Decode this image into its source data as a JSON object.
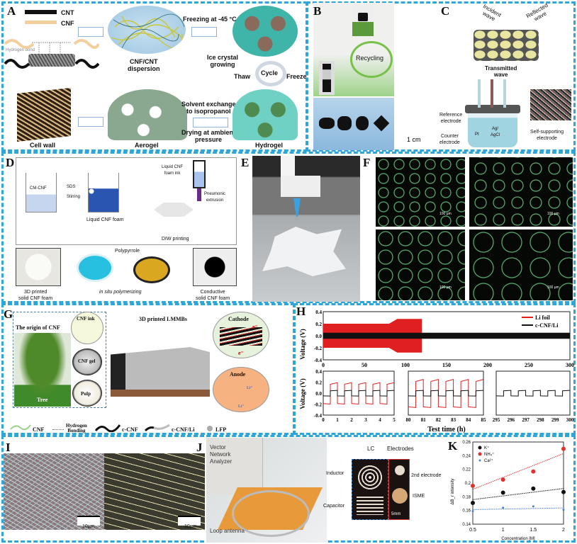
{
  "panels": {
    "A": {
      "label": "A",
      "legend_cnt": "CNT",
      "legend_cnf": "CNF",
      "hbond": "Hydrogen bond",
      "dispersion": "CNF/CNT\ndispersion",
      "freezing": "Freezing at -45 °C",
      "ice": "Ice crystal\ngrowing",
      "thaw": "Thaw",
      "cycle": "Cycle",
      "freeze": "Freeze",
      "solvent": "Solvent exchange\nto isopropanol",
      "drying": "Drying at ambient\npressure",
      "cell_wall": "Cell wall",
      "aerogel": "Aerogel",
      "hydrogel": "Hydrogel"
    },
    "B": {
      "label": "B",
      "recycling": "Recycling",
      "scale": "1 cm"
    },
    "C": {
      "label": "C",
      "incident": "Incident wave",
      "reflected": "Reflected wave",
      "transmitted": "Transmitted\nwave",
      "reference": "Reference\nelectrode",
      "counter": "Counter\nelectrode",
      "agcl": "Ag/\nAgCl",
      "pt": "Pt",
      "self_supporting": "Self-supporting\nelectrode"
    },
    "D": {
      "label": "D",
      "cmcnf": "CM-CNF",
      "sds": "SDS",
      "stirring": "Stirring",
      "liquid_foam": "Liquid CNF foam",
      "foam_ink": "Liquid CNF\nfoam ink",
      "pneumonic": "Pneumonic\nextrusion",
      "diw": "DIW printing",
      "polypyrrole": "Polypyrrole",
      "printed": "3D printed\nsolid CNF foam",
      "insitu": "in situ polymerizing",
      "conductive": "Conductive\nsolid CNF foam"
    },
    "E": {
      "label": "E"
    },
    "F": {
      "label": "F",
      "scale": "100 µm"
    },
    "G": {
      "label": "G",
      "origin": "The origin of CNF",
      "cnf_ink": "CNF ink",
      "cnf_gel": "CNF gel",
      "pulp": "Pulp",
      "tree": "Tree",
      "lmmb": "3D printed LMMBs",
      "cathode": "Cathode",
      "anode": "Anode",
      "e": "e⁻",
      "li": "Li⁺",
      "legend": [
        "CNF",
        "Hydrogen\nBonding",
        "c-CNF",
        "c-CNF/Li",
        "LFP"
      ]
    },
    "H": {
      "label": "H"
    },
    "I": {
      "label": "I",
      "scale": "10µm"
    },
    "J": {
      "label": "J",
      "vna": "Vector\nNetwork\nAnalyzer",
      "loop": "Loop antenna",
      "lc": "LC",
      "electrodes": "Electrodes",
      "inductor": "Inductor",
      "capacitor": "Capacitor",
      "second": "2nd electrode",
      "isme": "ISME",
      "scale": "5mm"
    },
    "K": {
      "label": "K"
    }
  },
  "colors": {
    "border": "#2ea6d8",
    "li_foil": "#e02020",
    "ccnf": "#111111",
    "k": "#111111",
    "nh4": "#e03030",
    "ca": "#4a7fd0"
  },
  "chart_data": [
    {
      "panel": "H",
      "type": "line",
      "ylabel": "Voltage (V)",
      "xlabel": "Test time (h)",
      "main": {
        "xlim": [
          0,
          300
        ],
        "ylim": [
          -0.4,
          0.4
        ],
        "xticks": [
          0,
          50,
          100,
          150,
          200,
          250,
          300
        ],
        "yticks": [
          "0.4",
          "0.2",
          "0.0",
          "-0.2",
          "-0.4"
        ]
      },
      "series": [
        {
          "name": "Li foil",
          "envelope_amplitude_V": 0.2,
          "x_end_h": 120,
          "envelope_amplitude_V_late": 0.28
        },
        {
          "name": "c-CNF/Li",
          "envelope_amplitude_V": 0.05,
          "x_end_h": 300
        }
      ],
      "insets": [
        {
          "xlim": [
            0,
            5
          ],
          "xticks": [
            "0",
            "1",
            "2",
            "3",
            "4",
            "5"
          ],
          "yticks": [
            "0.4",
            "0.2",
            "0.0",
            "-0.2",
            "-0.4"
          ],
          "li_foil_amp": 0.19,
          "ccnf_amp": 0.05
        },
        {
          "xlim": [
            80,
            85
          ],
          "xticks": [
            "80",
            "81",
            "82",
            "83",
            "84",
            "85"
          ],
          "li_foil_amp": 0.25,
          "ccnf_amp": 0.05
        },
        {
          "xlim": [
            295,
            300
          ],
          "xticks": [
            "295",
            "296",
            "297",
            "298",
            "299",
            "300"
          ],
          "ccnf_amp": 0.05
        }
      ]
    },
    {
      "panel": "K",
      "type": "scatter",
      "xlabel": "Concentration [M]",
      "ylabel": "ΔB_r intensity",
      "xlim": [
        0.5,
        2
      ],
      "ylim": [
        0.14,
        0.26
      ],
      "xticks": [
        "0.5",
        "1",
        "1.5",
        "2"
      ],
      "yticks": [
        "0.26",
        "0.24",
        "0.22",
        "0.2",
        "0.18",
        "0.16",
        "0.14"
      ],
      "x": [
        0.5,
        1,
        1.5,
        2
      ],
      "series": [
        {
          "name": "K⁺",
          "values": [
            0.171,
            0.186,
            0.192,
            0.187
          ]
        },
        {
          "name": "NH₄⁺",
          "values": [
            0.196,
            0.205,
            0.217,
            0.25
          ]
        },
        {
          "name": "Ca²⁺",
          "values": [
            0.159,
            0.164,
            0.166,
            0.161
          ]
        }
      ],
      "legend": "top-left"
    }
  ]
}
